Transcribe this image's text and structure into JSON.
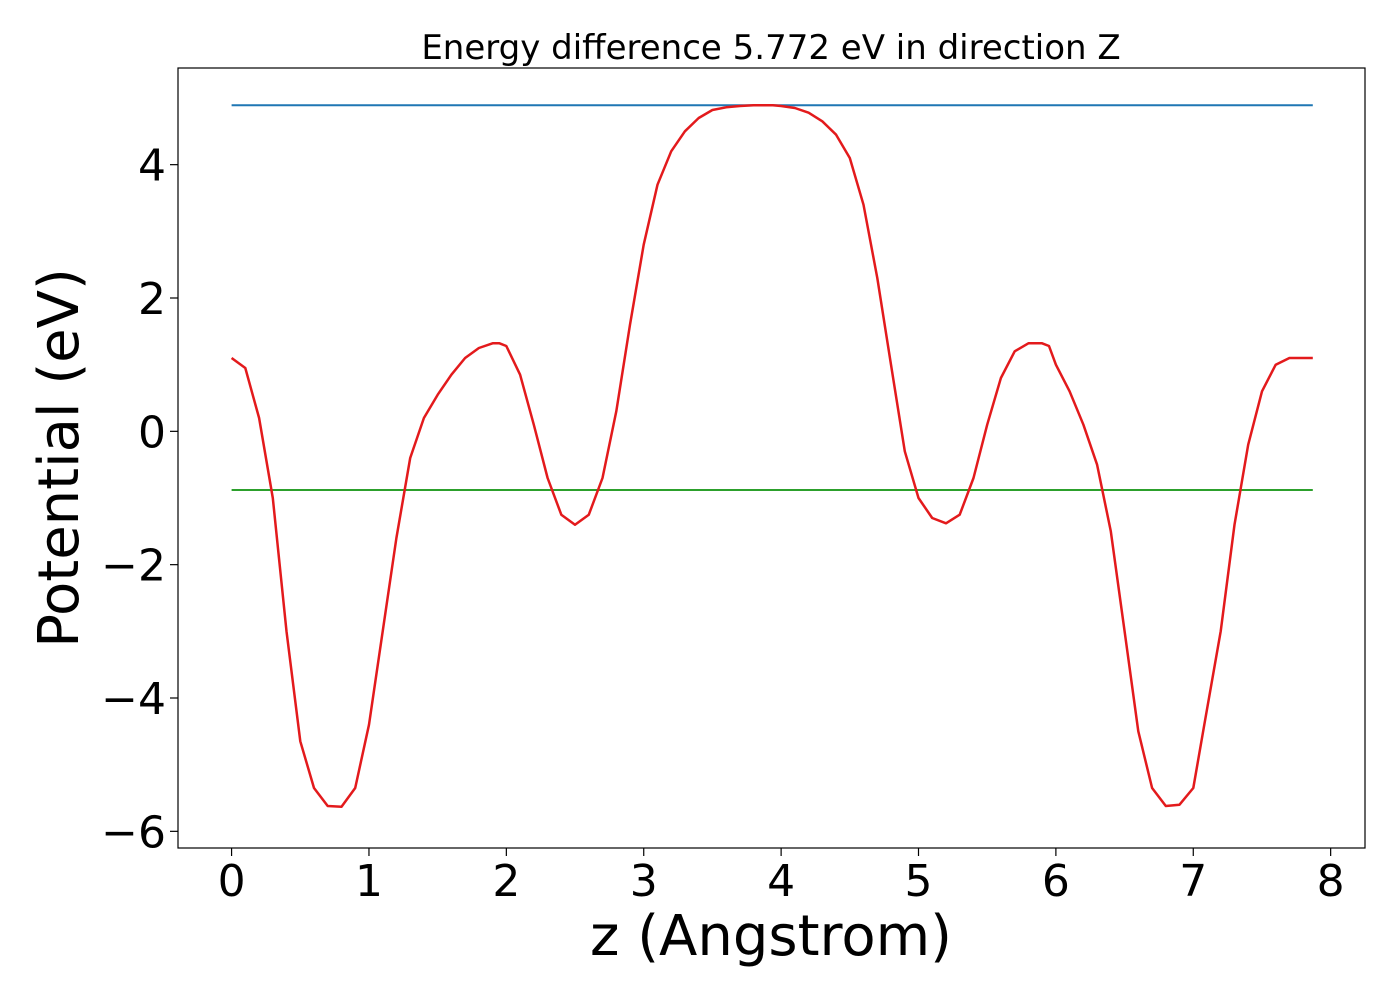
{
  "chart_data": {
    "type": "line",
    "title": "Energy difference 5.772 eV in direction Z",
    "xlabel": "z (Angstrom)",
    "ylabel": "Potential (eV)",
    "xlim": [
      -0.39,
      8.25
    ],
    "ylim": [
      -6.25,
      5.45
    ],
    "xticks": [
      0,
      1,
      2,
      3,
      4,
      5,
      6,
      7,
      8
    ],
    "xtick_labels": [
      "0",
      "1",
      "2",
      "3",
      "4",
      "5",
      "6",
      "7",
      "8"
    ],
    "yticks": [
      -6,
      -4,
      -2,
      0,
      2,
      4
    ],
    "ytick_labels": [
      "−6",
      "−4",
      "−2",
      "0",
      "2",
      "4"
    ],
    "grid": false,
    "series": [
      {
        "color": "#1f77b4",
        "x": [
          0,
          7.87
        ],
        "y": [
          4.89,
          4.89
        ]
      },
      {
        "color": "#2ca02c",
        "x": [
          0,
          7.87
        ],
        "y": [
          -0.88,
          -0.88
        ]
      },
      {
        "color": "#e31a1c",
        "x": [
          0,
          0.1,
          0.2,
          0.3,
          0.4,
          0.5,
          0.6,
          0.7,
          0.8,
          0.9,
          1.0,
          1.1,
          1.2,
          1.3,
          1.4,
          1.5,
          1.6,
          1.7,
          1.8,
          1.9,
          1.95,
          2.0,
          2.1,
          2.2,
          2.3,
          2.4,
          2.5,
          2.6,
          2.7,
          2.8,
          2.9,
          3.0,
          3.1,
          3.2,
          3.3,
          3.4,
          3.5,
          3.6,
          3.7,
          3.8,
          3.9,
          3.94,
          4.0,
          4.1,
          4.2,
          4.3,
          4.4,
          4.5,
          4.6,
          4.7,
          4.8,
          4.9,
          5.0,
          5.1,
          5.2,
          5.3,
          5.4,
          5.5,
          5.6,
          5.7,
          5.8,
          5.9,
          5.95,
          6.0,
          6.1,
          6.2,
          6.3,
          6.4,
          6.5,
          6.6,
          6.7,
          6.8,
          6.9,
          7.0,
          7.08,
          7.2,
          7.3,
          7.4,
          7.5,
          7.6,
          7.7,
          7.8,
          7.87
        ],
        "y": [
          1.1,
          0.95,
          0.2,
          -1.0,
          -3.0,
          -4.65,
          -5.35,
          -5.62,
          -5.63,
          -5.35,
          -4.4,
          -3.0,
          -1.6,
          -0.4,
          0.2,
          0.55,
          0.85,
          1.1,
          1.25,
          1.32,
          1.32,
          1.28,
          0.85,
          0.1,
          -0.7,
          -1.25,
          -1.4,
          -1.25,
          -0.7,
          0.3,
          1.6,
          2.8,
          3.7,
          4.2,
          4.5,
          4.7,
          4.82,
          4.86,
          4.88,
          4.89,
          4.89,
          4.89,
          4.88,
          4.85,
          4.78,
          4.65,
          4.45,
          4.1,
          3.4,
          2.3,
          1.0,
          -0.3,
          -1.0,
          -1.3,
          -1.38,
          -1.25,
          -0.7,
          0.1,
          0.8,
          1.2,
          1.32,
          1.32,
          1.28,
          1.0,
          0.6,
          0.1,
          -0.5,
          -1.5,
          -3.0,
          -4.5,
          -5.35,
          -5.62,
          -5.6,
          -5.35,
          -4.4,
          -3.0,
          -1.4,
          -0.2,
          0.6,
          1.0,
          1.1,
          1.1,
          1.1
        ]
      }
    ]
  }
}
